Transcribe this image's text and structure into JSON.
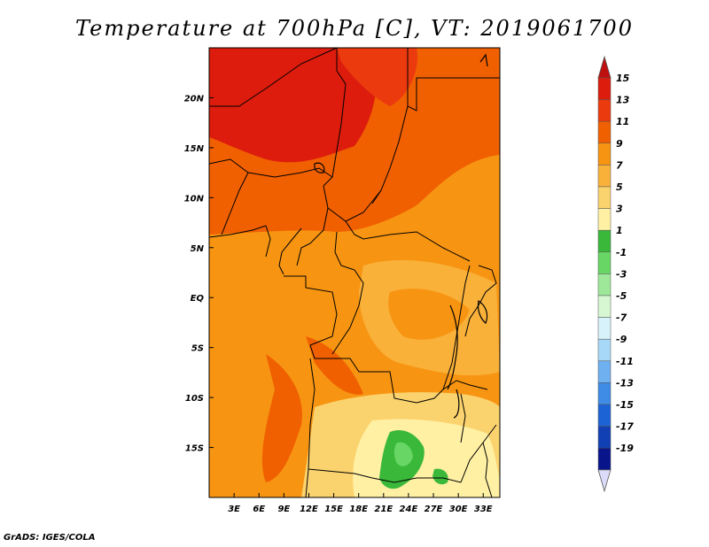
{
  "title": "Temperature at 700hPa [C], VT: 2019061700",
  "footer": "GrADS: IGES/COLA",
  "map": {
    "lon_range": [
      0,
      35
    ],
    "lat_range": [
      -20,
      25
    ],
    "lon_ticks": [
      "3E",
      "6E",
      "9E",
      "12E",
      "15E",
      "18E",
      "21E",
      "24E",
      "27E",
      "30E",
      "33E"
    ],
    "lon_tick_values": [
      3,
      6,
      9,
      12,
      15,
      18,
      21,
      24,
      27,
      30,
      33
    ],
    "lat_ticks": [
      "20N",
      "15N",
      "10N",
      "5N",
      "EQ",
      "5S",
      "10S",
      "15S"
    ],
    "lat_tick_values": [
      20,
      15,
      10,
      5,
      0,
      -5,
      -10,
      -15
    ]
  },
  "colorbar": {
    "labels": [
      "15",
      "13",
      "11",
      "9",
      "7",
      "5",
      "3",
      "1",
      "-1",
      "-3",
      "-5",
      "-7",
      "-9",
      "-11",
      "-13",
      "-15",
      "-17",
      "-19"
    ],
    "colors": [
      "#dd1c0d",
      "#ec3a0f",
      "#f06000",
      "#f79512",
      "#f9b13a",
      "#fbd36e",
      "#fff0a4",
      "#3ab83a",
      "#68d665",
      "#9ee89a",
      "#d6f7d1",
      "#d8f2fb",
      "#a8d8f8",
      "#6fb0f1",
      "#3e8ce6",
      "#1c64d6",
      "#1140b4",
      "#08148a"
    ],
    "top_arrow_color": "#c00f0f",
    "bottom_arrow_color": "#dcdcfa"
  }
}
